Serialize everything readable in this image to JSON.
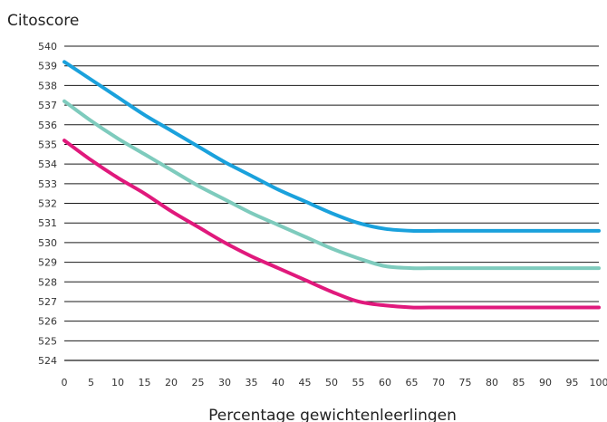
{
  "chart_data": {
    "type": "line",
    "title": "",
    "ylabel": "Citoscore",
    "xlabel": "Percentage gewichtenleerlingen",
    "x": [
      0,
      5,
      10,
      15,
      20,
      25,
      30,
      35,
      40,
      45,
      50,
      55,
      60,
      65,
      70,
      75,
      80,
      85,
      90,
      95,
      100
    ],
    "xlim": [
      0,
      100
    ],
    "ylim": [
      524,
      540
    ],
    "yticks": [
      524,
      525,
      526,
      527,
      528,
      529,
      530,
      531,
      532,
      533,
      534,
      535,
      536,
      537,
      538,
      539,
      540
    ],
    "xticks": [
      0,
      5,
      10,
      15,
      20,
      25,
      30,
      35,
      40,
      45,
      50,
      55,
      60,
      65,
      70,
      75,
      80,
      85,
      90,
      95,
      100
    ],
    "grid": "horizontal",
    "series": [
      {
        "color": "#1aa1dc",
        "values": [
          539.2,
          538.3,
          537.4,
          536.5,
          535.7,
          534.9,
          534.1,
          533.4,
          532.7,
          532.1,
          531.5,
          531.0,
          530.7,
          530.6,
          530.6,
          530.6,
          530.6,
          530.6,
          530.6,
          530.6,
          530.6
        ]
      },
      {
        "color": "#7ecbbd",
        "values": [
          537.2,
          536.2,
          535.3,
          534.5,
          533.7,
          532.9,
          532.2,
          531.5,
          530.9,
          530.3,
          529.7,
          529.2,
          528.8,
          528.7,
          528.7,
          528.7,
          528.7,
          528.7,
          528.7,
          528.7,
          528.7
        ]
      },
      {
        "color": "#e0197c",
        "values": [
          535.2,
          534.2,
          533.3,
          532.5,
          531.6,
          530.8,
          530.0,
          529.3,
          528.7,
          528.1,
          527.5,
          527.0,
          526.8,
          526.7,
          526.7,
          526.7,
          526.7,
          526.7,
          526.7,
          526.7,
          526.7
        ]
      }
    ]
  }
}
